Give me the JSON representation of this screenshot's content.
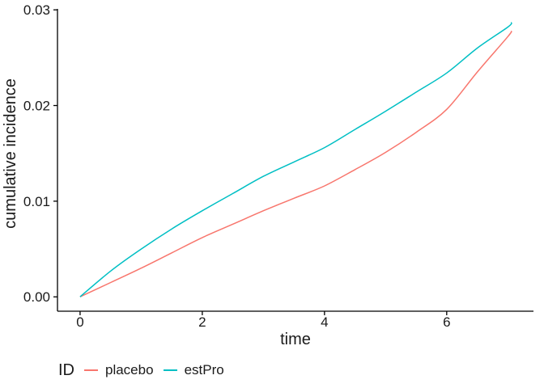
{
  "figure": {
    "background": "#ffffff",
    "xlabel": "time",
    "ylabel": "cumulative incidence",
    "legend": {
      "title": "ID",
      "items": [
        {
          "label": "placebo",
          "color": "#F8766D"
        },
        {
          "label": "estPro",
          "color": "#00BFC4"
        }
      ]
    }
  },
  "chart_data": {
    "type": "line",
    "title": "",
    "xlabel": "time",
    "ylabel": "cumulative incidence",
    "x": [
      0,
      0.5,
      1,
      1.5,
      2,
      2.5,
      3,
      3.5,
      4,
      4.5,
      5,
      5.5,
      6,
      6.5,
      7,
      7.06
    ],
    "series": [
      {
        "name": "placebo",
        "color": "#F8766D",
        "values": [
          0,
          0.0015,
          0.003,
          0.0046,
          0.0062,
          0.0076,
          0.009,
          0.0103,
          0.0116,
          0.0133,
          0.0151,
          0.0172,
          0.0196,
          0.0235,
          0.0272,
          0.0278
        ]
      },
      {
        "name": "estPro",
        "color": "#00BFC4",
        "values": [
          0,
          0.0027,
          0.005,
          0.0071,
          0.009,
          0.0108,
          0.0126,
          0.0141,
          0.0156,
          0.0175,
          0.0194,
          0.0214,
          0.0234,
          0.026,
          0.0282,
          0.0287
        ]
      }
    ],
    "xlim": [
      -0.37,
      7.42
    ],
    "ylim": [
      -0.0015,
      0.0301
    ],
    "xticks": [
      0,
      2,
      4,
      6
    ],
    "yticks": [
      0,
      0.01,
      0.02,
      0.03
    ],
    "ytick_labels": [
      "0.00",
      "0.01",
      "0.02",
      "0.03"
    ],
    "grid": false,
    "axis_color": "#000000",
    "legend_position": "bottom-left",
    "legend_title": "ID"
  }
}
